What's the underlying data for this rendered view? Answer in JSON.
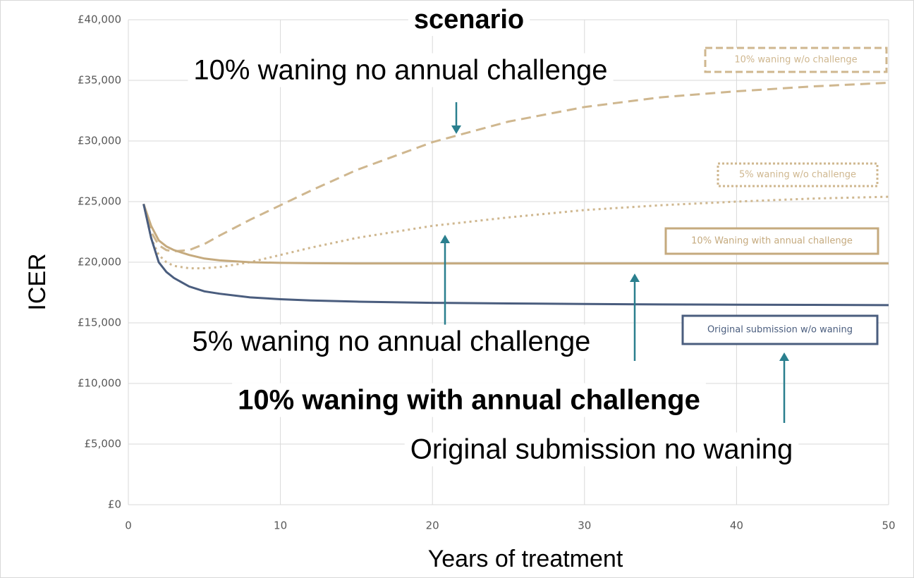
{
  "chart_data": {
    "type": "line",
    "title": "scenario",
    "x_label": "Years of treatment",
    "y_label": "ICER",
    "x": [
      1,
      1.5,
      2,
      2.5,
      3,
      4,
      5,
      6,
      8,
      10,
      12,
      15,
      20,
      25,
      30,
      35,
      40,
      45,
      50
    ],
    "series": [
      {
        "name": "10% waning w/o challenge",
        "color": "#cfb78f",
        "line_style": "dashed",
        "values": [
          24800,
          22500,
          21400,
          21000,
          20900,
          21000,
          21500,
          22200,
          23500,
          24700,
          25900,
          27600,
          29900,
          31600,
          32800,
          33600,
          34100,
          34500,
          34800
        ]
      },
      {
        "name": "5% waning w/o challenge",
        "color": "#cfb78f",
        "line_style": "dotted",
        "values": [
          24800,
          22000,
          20600,
          20000,
          19700,
          19500,
          19500,
          19600,
          20000,
          20600,
          21200,
          22000,
          23000,
          23700,
          24300,
          24700,
          25000,
          25250,
          25400
        ]
      },
      {
        "name": "10% Waning with annual challenge",
        "color": "#c5aa7e",
        "line_style": "solid",
        "values": [
          24800,
          23000,
          21800,
          21300,
          21000,
          20600,
          20300,
          20150,
          20000,
          19950,
          19920,
          19900,
          19900,
          19900,
          19900,
          19900,
          19900,
          19900,
          19900
        ]
      },
      {
        "name": "Original submission w/o waning",
        "color": "#4a5d7e",
        "line_style": "solid",
        "values": [
          24800,
          22000,
          20000,
          19200,
          18700,
          18000,
          17600,
          17400,
          17100,
          16950,
          16850,
          16750,
          16650,
          16600,
          16550,
          16520,
          16500,
          16480,
          16460
        ]
      }
    ],
    "xlim": [
      0,
      50
    ],
    "xticks": [
      0,
      10,
      20,
      30,
      40,
      50
    ],
    "ylim": [
      0,
      40000
    ],
    "yticks": [
      {
        "value": 0,
        "label": "£0"
      },
      {
        "value": 5000,
        "label": "£5,000"
      },
      {
        "value": 10000,
        "label": "£10,000"
      },
      {
        "value": 15000,
        "label": "£15,000"
      },
      {
        "value": 20000,
        "label": "£20,000"
      },
      {
        "value": 25000,
        "label": "£25,000"
      },
      {
        "value": 30000,
        "label": "£30,000"
      },
      {
        "value": 35000,
        "label": "£35,000"
      },
      {
        "value": 40000,
        "label": "£40,000"
      }
    ],
    "grid": true,
    "annotations": [
      {
        "text": "10% waning no annual challenge",
        "bold": false
      },
      {
        "text": "5% waning no annual challenge",
        "bold": false
      },
      {
        "text": "10% waning with annual challenge",
        "bold": true
      },
      {
        "text": "Original submission no waning",
        "bold": false
      }
    ],
    "arrow_color": "#2a7f8e"
  }
}
